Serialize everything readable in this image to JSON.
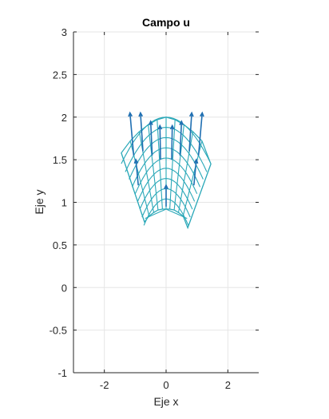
{
  "chart_data": {
    "type": "line",
    "title": "Campo u",
    "xlabel": "Eje x",
    "ylabel": "Eje y",
    "xlim": [
      -3,
      3
    ],
    "ylim": [
      -1,
      3
    ],
    "xticks": [
      -2,
      0,
      2
    ],
    "xtick_labels": [
      "-2",
      "0",
      "2"
    ],
    "yticks": [
      -1,
      -0.5,
      0,
      0.5,
      1,
      1.5,
      2,
      2.5,
      3
    ],
    "ytick_labels": [
      "-1",
      "-0.5",
      "0",
      "0.5",
      "1",
      "1.5",
      "2",
      "2.5",
      "3"
    ],
    "grid": true,
    "colors": {
      "mesh": "#2aa8b8",
      "arrows": "#1f6fb2",
      "axes": "#262626",
      "grid": "#e6e6e6"
    },
    "mesh": {
      "description_of_surface": "deformed grid y = c - k*x^2 over parameter lines",
      "u_lines": [
        {
          "apex_y": 2.0,
          "x_min": -1.45,
          "x_max": 1.45,
          "curvature": 0.26
        },
        {
          "apex_y": 1.88,
          "x_min": -1.32,
          "x_max": 1.32,
          "curvature": 0.3
        },
        {
          "apex_y": 1.76,
          "x_min": -1.2,
          "x_max": 1.2,
          "curvature": 0.34
        },
        {
          "apex_y": 1.64,
          "x_min": -1.1,
          "x_max": 1.1,
          "curvature": 0.38
        },
        {
          "apex_y": 1.52,
          "x_min": -1.0,
          "x_max": 1.0,
          "curvature": 0.42
        },
        {
          "apex_y": 1.4,
          "x_min": -0.92,
          "x_max": 0.92,
          "curvature": 0.46
        },
        {
          "apex_y": 1.28,
          "x_min": -0.85,
          "x_max": 0.85,
          "curvature": 0.5
        },
        {
          "apex_y": 1.16,
          "x_min": -0.78,
          "x_max": 0.78,
          "curvature": 0.55
        },
        {
          "apex_y": 1.04,
          "x_min": -0.72,
          "x_max": 0.72,
          "curvature": 0.6
        },
        {
          "apex_y": 0.92,
          "x_min": -0.68,
          "x_max": 0.68,
          "curvature": 0.16
        }
      ],
      "v_lines": [
        {
          "top": [
            -1.45,
            1.58
          ],
          "bottom": [
            -0.7,
            0.77
          ]
        },
        {
          "top": [
            -1.16,
            1.72
          ],
          "bottom": [
            -0.55,
            0.84
          ]
        },
        {
          "top": [
            -0.87,
            1.83
          ],
          "bottom": [
            -0.4,
            0.88
          ]
        },
        {
          "top": [
            -0.58,
            1.91
          ],
          "bottom": [
            -0.26,
            0.91
          ]
        },
        {
          "top": [
            -0.29,
            1.97
          ],
          "bottom": [
            -0.12,
            0.92
          ]
        },
        {
          "top": [
            0.0,
            2.0
          ],
          "bottom": [
            0.0,
            0.92
          ]
        },
        {
          "top": [
            0.29,
            1.97
          ],
          "bottom": [
            0.12,
            0.92
          ]
        },
        {
          "top": [
            0.58,
            1.91
          ],
          "bottom": [
            0.26,
            0.91
          ]
        },
        {
          "top": [
            0.87,
            1.83
          ],
          "bottom": [
            0.4,
            0.88
          ]
        },
        {
          "top": [
            1.16,
            1.72
          ],
          "bottom": [
            0.55,
            0.84
          ]
        },
        {
          "top": [
            1.45,
            1.45
          ],
          "bottom": [
            0.7,
            0.7
          ]
        }
      ]
    },
    "arrows": [
      {
        "x": -1.05,
        "y": 1.55,
        "dx": -0.12,
        "dy": 0.5
      },
      {
        "x": -0.75,
        "y": 1.6,
        "dx": -0.08,
        "dy": 0.45
      },
      {
        "x": -0.45,
        "y": 1.55,
        "dx": -0.05,
        "dy": 0.4
      },
      {
        "x": -0.18,
        "y": 1.5,
        "dx": -0.02,
        "dy": 0.4
      },
      {
        "x": 0.18,
        "y": 1.5,
        "dx": 0.02,
        "dy": 0.4
      },
      {
        "x": 0.45,
        "y": 1.55,
        "dx": 0.05,
        "dy": 0.4
      },
      {
        "x": 0.75,
        "y": 1.6,
        "dx": 0.08,
        "dy": 0.45
      },
      {
        "x": 1.05,
        "y": 1.55,
        "dx": 0.12,
        "dy": 0.5
      },
      {
        "x": -0.9,
        "y": 1.2,
        "dx": -0.08,
        "dy": 0.3
      },
      {
        "x": 0.9,
        "y": 1.2,
        "dx": 0.08,
        "dy": 0.3
      },
      {
        "x": 0.0,
        "y": 0.95,
        "dx": 0.0,
        "dy": 0.25
      }
    ]
  }
}
